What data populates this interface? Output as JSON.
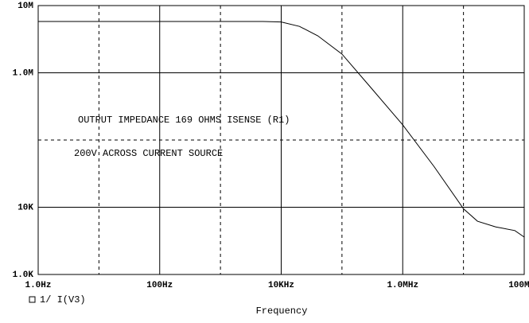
{
  "chart_data": {
    "type": "line",
    "x_label": "Frequency",
    "annotations": [
      "OUTPUT IMPEDANCE 169 OHMS ISENSE (R1)",
      "200V ACROSS CURRENT SOURCE"
    ],
    "x_log": true,
    "y_log": true,
    "grid": true,
    "xlim": [
      1,
      100000000
    ],
    "xticks": [
      {
        "value": 1,
        "label": "1.0Hz"
      },
      {
        "value": 100,
        "label": "100Hz"
      },
      {
        "value": 10000,
        "label": "10KHz"
      },
      {
        "value": 1000000,
        "label": "1.0MHz"
      },
      {
        "value": 100000000,
        "label": "100MHz"
      }
    ],
    "x_minor_ticks": [
      10,
      1000,
      100000,
      10000000
    ],
    "ylim": [
      1000,
      10000000
    ],
    "yticks": [
      {
        "value": 1000,
        "label": "1.0K"
      },
      {
        "value": 10000,
        "label": "10K"
      },
      {
        "value": 1000000,
        "label": "1.0M"
      },
      {
        "value": 10000000,
        "label": "10M"
      }
    ],
    "y_minor_ticks": [
      100000
    ],
    "x": [
      1,
      10,
      100,
      1000,
      5000,
      10000,
      20000,
      40000,
      100000,
      300000,
      1000000,
      3300000,
      10000000,
      17000000,
      34000000,
      70000000,
      100000000
    ],
    "series": [
      {
        "name": "1/ I(V3)",
        "color": "#000000",
        "values": [
          5800000,
          5800000,
          5800000,
          5800000,
          5800000,
          5700000,
          4900000,
          3550000,
          1900000,
          600000,
          168000,
          40000,
          9500,
          6200,
          5100,
          4500,
          3600
        ]
      }
    ]
  }
}
